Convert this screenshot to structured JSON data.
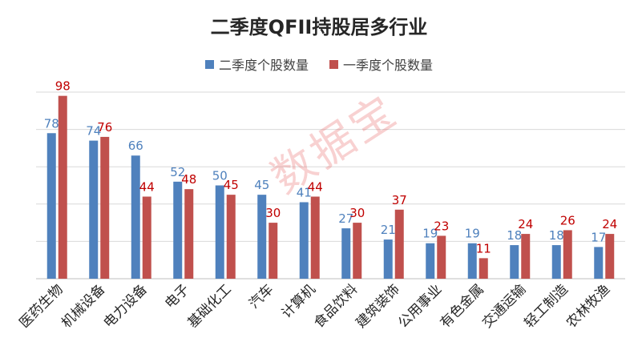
{
  "chart_data": {
    "type": "bar",
    "title": "二季度QFII持股居多行业",
    "categories": [
      "医药生物",
      "机械设备",
      "电力设备",
      "电子",
      "基础化工",
      "汽车",
      "计算机",
      "食品饮料",
      "建筑装饰",
      "公用事业",
      "有色金属",
      "交通运输",
      "轻工制造",
      "农林牧渔"
    ],
    "series": [
      {
        "name": "二季度个股数量",
        "color": "#4f81bd",
        "label_color": "#4f81bd",
        "values": [
          78,
          74,
          66,
          52,
          50,
          45,
          41,
          27,
          21,
          19,
          19,
          18,
          18,
          17
        ]
      },
      {
        "name": "一季度个股数量",
        "color": "#c0504d",
        "label_color": "#c00000",
        "values": [
          98,
          76,
          44,
          48,
          45,
          30,
          44,
          30,
          37,
          23,
          11,
          24,
          26,
          24
        ]
      }
    ],
    "ylim": [
      0,
      100
    ],
    "grid": true,
    "legend_position": "top-center",
    "xlabel": "",
    "ylabel": ""
  },
  "watermark": "数据宝"
}
